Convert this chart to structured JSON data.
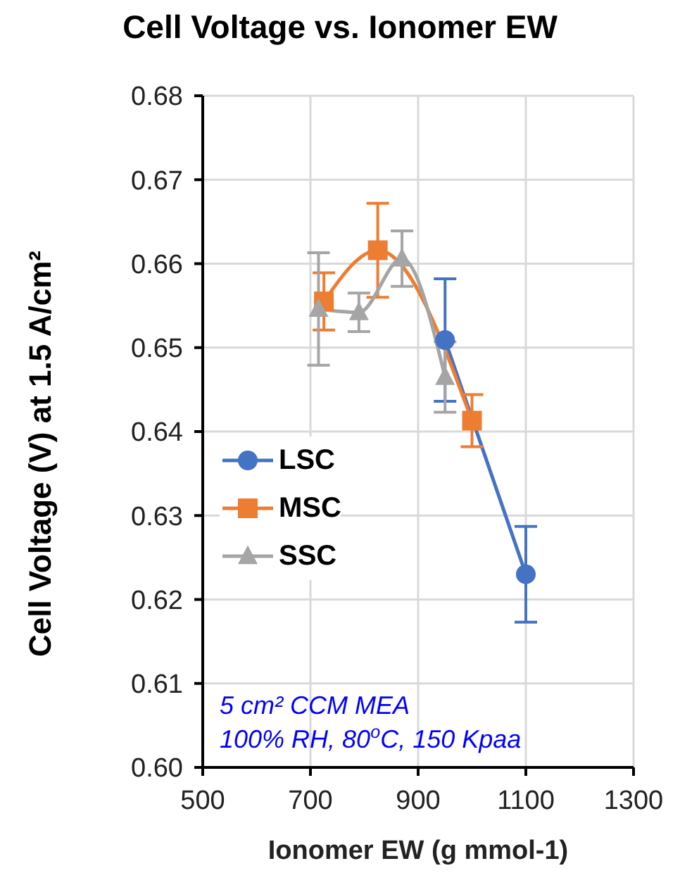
{
  "chart_data": {
    "type": "line",
    "title": "Cell Voltage vs. Ionomer EW",
    "xlabel": "Ionomer EW (g mmol-1)",
    "ylabel": "Cell Voltage (V) at 1.5 A/cm²",
    "xlim": [
      500,
      1300
    ],
    "xticks": [
      500,
      700,
      900,
      1100,
      1300
    ],
    "ylim": [
      0.6,
      0.68
    ],
    "yticks": [
      {
        "value": 0.6,
        "label": "0.60"
      },
      {
        "value": 0.61,
        "label": "0.61"
      },
      {
        "value": 0.62,
        "label": "0.62"
      },
      {
        "value": 0.63,
        "label": "0.63"
      },
      {
        "value": 0.64,
        "label": "0.64"
      },
      {
        "value": 0.65,
        "label": "0.65"
      },
      {
        "value": 0.66,
        "label": "0.66"
      },
      {
        "value": 0.67,
        "label": "0.67"
      },
      {
        "value": 0.68,
        "label": "0.68"
      }
    ],
    "grid": true,
    "legend": "left",
    "series": [
      {
        "name": "LSC",
        "color": "#4472c4",
        "marker": "circle",
        "x": [
          950,
          1100
        ],
        "values": [
          0.6509,
          0.623
        ],
        "errors": [
          0.0073,
          0.0057
        ]
      },
      {
        "name": "MSC",
        "color": "#ed7d31",
        "marker": "square",
        "x": [
          725,
          825,
          1000
        ],
        "values": [
          0.6555,
          0.6616,
          0.6413
        ],
        "errors": [
          0.0034,
          0.0056,
          0.0031
        ]
      },
      {
        "name": "SSC",
        "color": "#a5a5a5",
        "marker": "triangle",
        "x": [
          715,
          790,
          870,
          950
        ],
        "values": [
          0.6546,
          0.6542,
          0.6606,
          0.6465
        ],
        "errors": [
          0.0067,
          0.0023,
          0.0033,
          0.0042
        ]
      }
    ],
    "annotations": [
      "5 cm² CCM MEA",
      "100% RH, 80$^{o}$C, 150 Kpaa"
    ]
  }
}
